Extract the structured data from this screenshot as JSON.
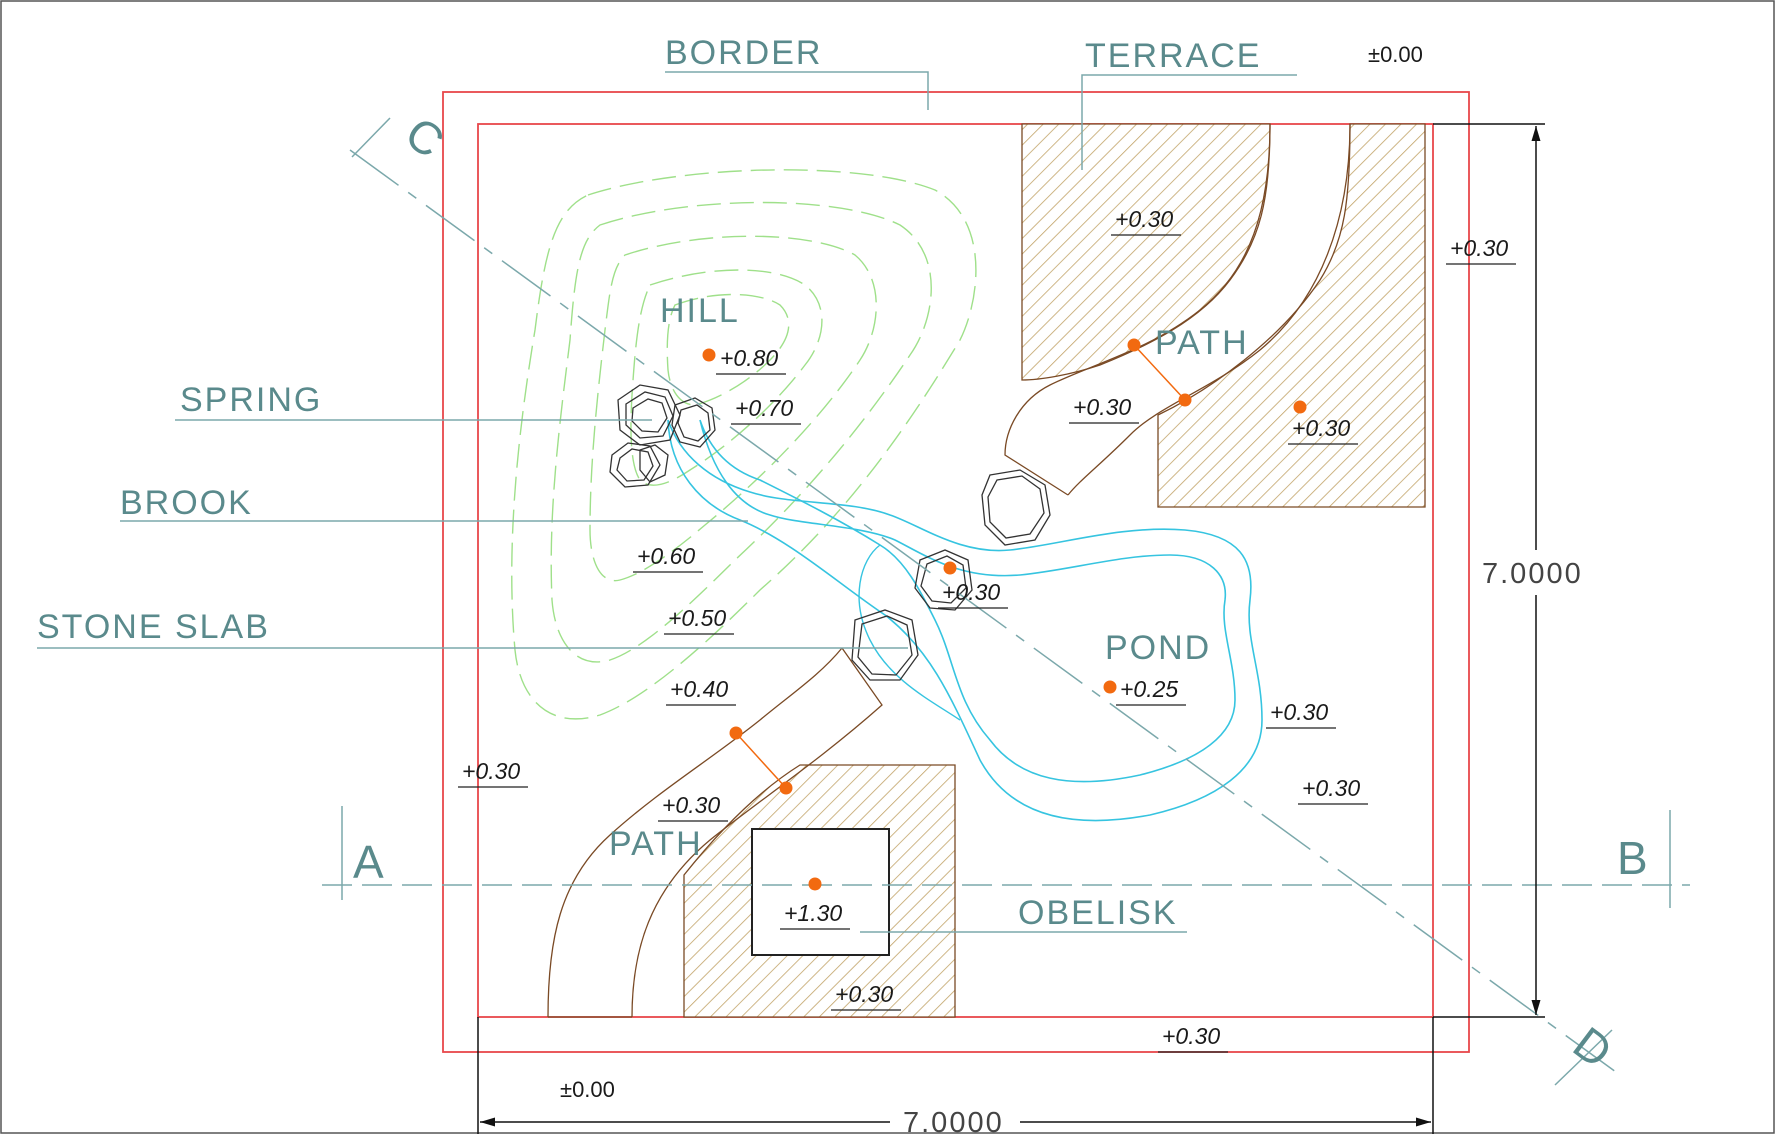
{
  "labels": {
    "border": "BORDER",
    "terrace": "TERRACE",
    "hill": "HILL",
    "spring": "SPRING",
    "brook": "BROOK",
    "stone_slab": "STONE SLAB",
    "pond": "POND",
    "path_top": "PATH",
    "path_bottom": "PATH",
    "obelisk": "OBELISK"
  },
  "section_marks": {
    "a": "A",
    "b": "B",
    "c": "C",
    "d": "D"
  },
  "dimensions": {
    "width": "7.0000",
    "height": "7.0000"
  },
  "elevations": {
    "datum_top": "±0.00",
    "datum_bottom": "±0.00",
    "terrace": "+0.30",
    "right_margin": "+0.30",
    "hill_peak": "+0.80",
    "hill_070": "+0.70",
    "path_top": "+0.30",
    "terrace_lower": "+0.30",
    "hill_060": "+0.60",
    "stone_island": "+0.30",
    "hill_050": "+0.50",
    "pond": "+0.25",
    "hill_040": "+0.40",
    "pond_edge": "+0.30",
    "left_margin": "+0.30",
    "right_lower": "+0.30",
    "path_bottom": "+0.30",
    "obelisk": "+1.30",
    "obelisk_base": "+0.30",
    "bottom_edge": "+0.30"
  },
  "colors": {
    "border_line": "#e8474a",
    "leader": "#7ba8ab",
    "contour": "#9fe08a",
    "water": "#36c4e0",
    "path_edge": "#7a4a25",
    "hatch": "#c2a468",
    "point": "#f26a10"
  }
}
